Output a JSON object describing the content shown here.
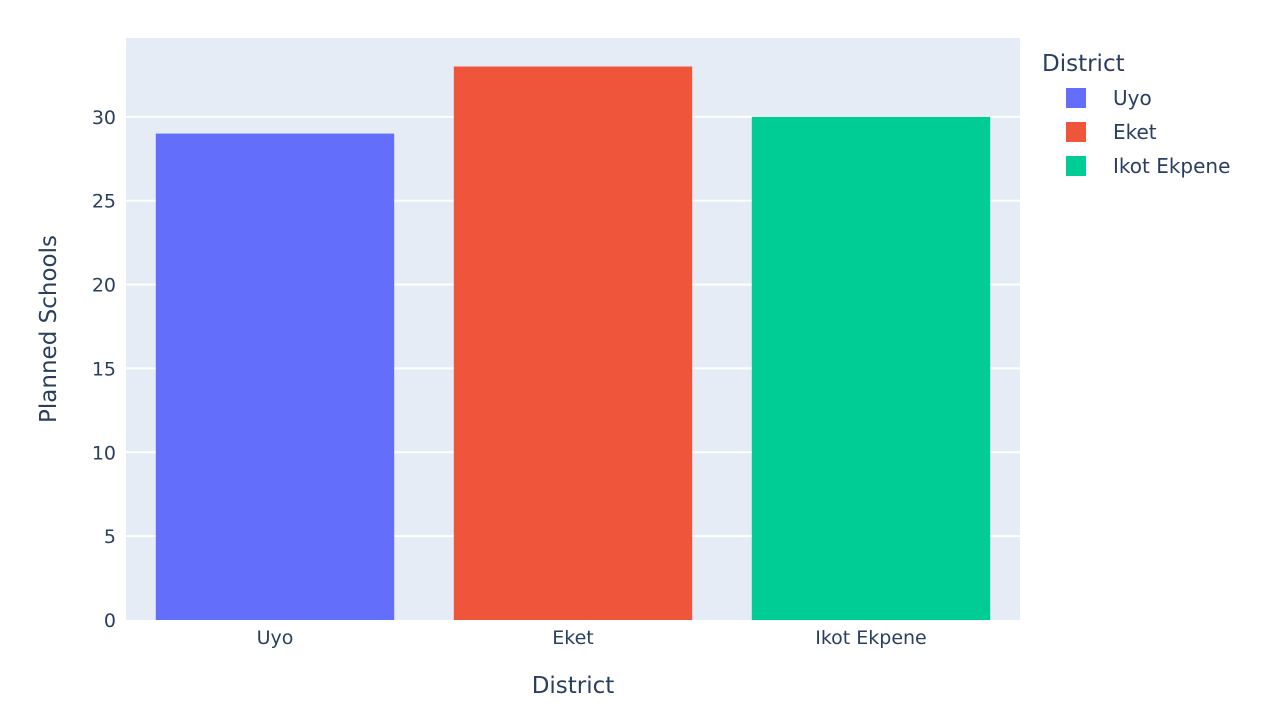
{
  "chart_data": {
    "type": "bar",
    "categories": [
      "Uyo",
      "Eket",
      "Ikot Ekpene"
    ],
    "values": [
      29,
      33,
      30
    ],
    "colors": [
      "#636efa",
      "#ef553b",
      "#00cc96"
    ],
    "xlabel": "District",
    "ylabel": "Planned Schools",
    "ylim": [
      0,
      34.7
    ],
    "yticks": [
      0,
      5,
      10,
      15,
      20,
      25,
      30
    ],
    "grid": true,
    "plot_background": "#e5ecf6",
    "legend": {
      "title": "District",
      "placement": "right",
      "entries": [
        "Uyo",
        "Eket",
        "Ikot Ekpene"
      ]
    }
  }
}
